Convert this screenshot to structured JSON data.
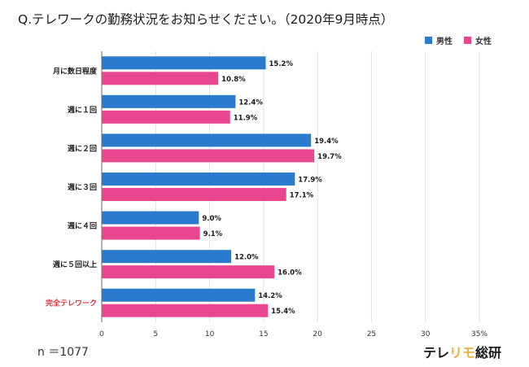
{
  "title": "Q.テレワークの勤務状況をお知らせください。（2020年9月時点）",
  "n_note": "n ＝1077",
  "logo": {
    "part1": "テレ",
    "part2": "リモ",
    "part3": "総研"
  },
  "colors": {
    "male": "#2a7bcd",
    "female": "#e8478f",
    "highlight_label": "#e0303a"
  },
  "chart_data": {
    "type": "bar",
    "orientation": "horizontal",
    "categories": [
      "月に数日程度",
      "週に１回",
      "週に２回",
      "週に３回",
      "週に４回",
      "週に５回以上",
      "完全テレワーク"
    ],
    "highlight_category": "完全テレワーク",
    "series": [
      {
        "name": "男性",
        "values": [
          15.2,
          12.4,
          19.4,
          17.9,
          9.0,
          12.0,
          14.2
        ]
      },
      {
        "name": "女性",
        "values": [
          10.8,
          11.9,
          19.7,
          17.1,
          9.1,
          16.0,
          15.4
        ]
      }
    ],
    "value_labels": [
      [
        "15.2%",
        "12.4%",
        "19.4%",
        "17.9%",
        "9.0%",
        "12.0%",
        "14.2%"
      ],
      [
        "10.8%",
        "11.9%",
        "19.7%",
        "17.1%",
        "9.1%",
        "16.0%",
        "15.4%"
      ]
    ],
    "xlim": [
      0,
      35
    ],
    "xticks": [
      0,
      5,
      10,
      15,
      20,
      25,
      30,
      35
    ],
    "xtick_labels": [
      "0",
      "5",
      "10",
      "15",
      "20",
      "25",
      "30",
      "35%"
    ],
    "grid": true,
    "legend_position": "top-right"
  }
}
